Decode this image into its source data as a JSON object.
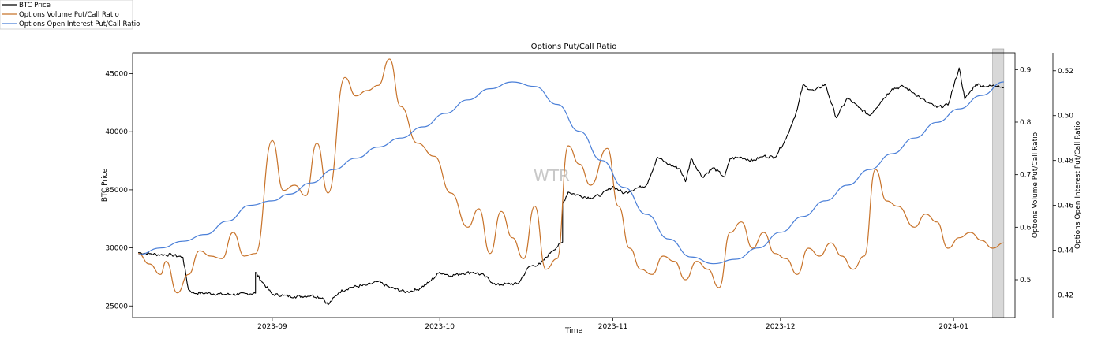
{
  "chart_data": {
    "type": "line",
    "title": "Options Put/Call Ratio",
    "xlabel": "Time",
    "watermark": "WTR",
    "x_range": [
      "2023-08-07",
      "2024-01-12"
    ],
    "x_ticks": [
      "2023-09",
      "2023-10",
      "2023-11",
      "2023-12",
      "2024-01"
    ],
    "highlight_range": [
      "2024-01-08",
      "2024-01-10"
    ],
    "colors": {
      "btc": "#000000",
      "volume": "#c8732a",
      "oi": "#4a7fd8",
      "highlight": "#d8d8d8"
    },
    "legend": {
      "placement": "top-left",
      "entries": [
        "BTC Price",
        "Options Volume Put/Call Ratio",
        "Options Open Interest Put/Call Ratio"
      ]
    },
    "axes": {
      "left": {
        "label": "BTC Price",
        "ylim": [
          24000,
          46800
        ],
        "ticks": [
          25000,
          30000,
          35000,
          40000,
          45000
        ]
      },
      "right1": {
        "label": "Options Volume Put/Call Ratio",
        "ylim": [
          0.428,
          0.932
        ],
        "ticks": [
          0.5,
          0.6,
          0.7,
          0.8,
          0.9
        ]
      },
      "right2": {
        "label": "Options Open Interest Put/Call Ratio",
        "ylim": [
          0.41,
          0.528
        ],
        "ticks": [
          0.42,
          0.44,
          0.46,
          0.48,
          0.5,
          0.52
        ]
      }
    },
    "series": [
      {
        "name": "BTC Price",
        "axis": "left",
        "key": "btc",
        "points": [
          [
            "2023-08-08",
            29600
          ],
          [
            "2023-08-10",
            29500
          ],
          [
            "2023-08-12",
            29400
          ],
          [
            "2023-08-14",
            29400
          ],
          [
            "2023-08-16",
            29200
          ],
          [
            "2023-08-17",
            26400
          ],
          [
            "2023-08-18",
            26100
          ],
          [
            "2023-08-20",
            26100
          ],
          [
            "2023-08-23",
            26000
          ],
          [
            "2023-08-26",
            26000
          ],
          [
            "2023-08-29",
            26100
          ],
          [
            "2023-08-29",
            27900
          ],
          [
            "2023-08-30",
            27200
          ],
          [
            "2023-09-01",
            26000
          ],
          [
            "2023-09-03",
            25900
          ],
          [
            "2023-09-05",
            25800
          ],
          [
            "2023-09-08",
            25900
          ],
          [
            "2023-09-10",
            25700
          ],
          [
            "2023-09-11",
            25100
          ],
          [
            "2023-09-13",
            26200
          ],
          [
            "2023-09-15",
            26600
          ],
          [
            "2023-09-18",
            26800
          ],
          [
            "2023-09-20",
            27100
          ],
          [
            "2023-09-22",
            26600
          ],
          [
            "2023-09-25",
            26200
          ],
          [
            "2023-09-27",
            26400
          ],
          [
            "2023-09-29",
            27000
          ],
          [
            "2023-10-01",
            27900
          ],
          [
            "2023-10-03",
            27600
          ],
          [
            "2023-10-05",
            27800
          ],
          [
            "2023-10-07",
            27900
          ],
          [
            "2023-10-09",
            27600
          ],
          [
            "2023-10-11",
            26800
          ],
          [
            "2023-10-13",
            26900
          ],
          [
            "2023-10-15",
            26900
          ],
          [
            "2023-10-17",
            28400
          ],
          [
            "2023-10-19",
            28600
          ],
          [
            "2023-10-21",
            29700
          ],
          [
            "2023-10-23",
            30500
          ],
          [
            "2023-10-23",
            33800
          ],
          [
            "2023-10-24",
            34800
          ],
          [
            "2023-10-26",
            34500
          ],
          [
            "2023-10-28",
            34300
          ],
          [
            "2023-10-30",
            34600
          ],
          [
            "2023-11-01",
            35300
          ],
          [
            "2023-11-03",
            34700
          ],
          [
            "2023-11-05",
            35100
          ],
          [
            "2023-11-07",
            35400
          ],
          [
            "2023-11-09",
            37800
          ],
          [
            "2023-11-11",
            37200
          ],
          [
            "2023-11-13",
            36800
          ],
          [
            "2023-11-14",
            35700
          ],
          [
            "2023-11-15",
            37700
          ],
          [
            "2023-11-17",
            36100
          ],
          [
            "2023-11-19",
            36900
          ],
          [
            "2023-11-21",
            36100
          ],
          [
            "2023-11-22",
            37700
          ],
          [
            "2023-11-24",
            37800
          ],
          [
            "2023-11-26",
            37500
          ],
          [
            "2023-11-28",
            37900
          ],
          [
            "2023-11-30",
            37800
          ],
          [
            "2023-12-02",
            39400
          ],
          [
            "2023-12-04",
            41900
          ],
          [
            "2023-12-05",
            44000
          ],
          [
            "2023-12-07",
            43500
          ],
          [
            "2023-12-09",
            44100
          ],
          [
            "2023-12-11",
            41200
          ],
          [
            "2023-12-13",
            42900
          ],
          [
            "2023-12-15",
            42100
          ],
          [
            "2023-12-17",
            41400
          ],
          [
            "2023-12-19",
            42600
          ],
          [
            "2023-12-21",
            43700
          ],
          [
            "2023-12-23",
            43900
          ],
          [
            "2023-12-25",
            43300
          ],
          [
            "2023-12-27",
            42600
          ],
          [
            "2023-12-29",
            42100
          ],
          [
            "2023-12-31",
            42300
          ],
          [
            "2024-01-02",
            45500
          ],
          [
            "2024-01-03",
            42800
          ],
          [
            "2024-01-05",
            44100
          ],
          [
            "2024-01-07",
            43900
          ],
          [
            "2024-01-09",
            44000
          ],
          [
            "2024-01-10",
            43800
          ]
        ]
      },
      {
        "name": "Options Volume Put/Call Ratio",
        "axis": "right1",
        "key": "volume",
        "points": [
          [
            "2023-08-08",
            0.55
          ],
          [
            "2023-08-10",
            0.53
          ],
          [
            "2023-08-12",
            0.51
          ],
          [
            "2023-08-13",
            0.535
          ],
          [
            "2023-08-15",
            0.475
          ],
          [
            "2023-08-17",
            0.51
          ],
          [
            "2023-08-19",
            0.555
          ],
          [
            "2023-08-21",
            0.545
          ],
          [
            "2023-08-23",
            0.54
          ],
          [
            "2023-08-25",
            0.59
          ],
          [
            "2023-08-27",
            0.545
          ],
          [
            "2023-08-29",
            0.55
          ],
          [
            "2023-09-01",
            0.765
          ],
          [
            "2023-09-03",
            0.67
          ],
          [
            "2023-09-05",
            0.68
          ],
          [
            "2023-09-07",
            0.66
          ],
          [
            "2023-09-09",
            0.76
          ],
          [
            "2023-09-11",
            0.665
          ],
          [
            "2023-09-14",
            0.885
          ],
          [
            "2023-09-16",
            0.85
          ],
          [
            "2023-09-18",
            0.86
          ],
          [
            "2023-09-20",
            0.87
          ],
          [
            "2023-09-22",
            0.92
          ],
          [
            "2023-09-24",
            0.83
          ],
          [
            "2023-09-27",
            0.76
          ],
          [
            "2023-09-30",
            0.735
          ],
          [
            "2023-10-03",
            0.665
          ],
          [
            "2023-10-06",
            0.6
          ],
          [
            "2023-10-08",
            0.635
          ],
          [
            "2023-10-10",
            0.55
          ],
          [
            "2023-10-12",
            0.63
          ],
          [
            "2023-10-14",
            0.58
          ],
          [
            "2023-10-16",
            0.54
          ],
          [
            "2023-10-18",
            0.64
          ],
          [
            "2023-10-20",
            0.52
          ],
          [
            "2023-10-22",
            0.54
          ],
          [
            "2023-10-24",
            0.755
          ],
          [
            "2023-10-26",
            0.72
          ],
          [
            "2023-10-28",
            0.68
          ],
          [
            "2023-10-31",
            0.75
          ],
          [
            "2023-11-02",
            0.64
          ],
          [
            "2023-11-04",
            0.56
          ],
          [
            "2023-11-06",
            0.52
          ],
          [
            "2023-11-08",
            0.51
          ],
          [
            "2023-11-10",
            0.545
          ],
          [
            "2023-11-12",
            0.535
          ],
          [
            "2023-11-14",
            0.5
          ],
          [
            "2023-11-16",
            0.535
          ],
          [
            "2023-11-18",
            0.52
          ],
          [
            "2023-11-20",
            0.485
          ],
          [
            "2023-11-22",
            0.59
          ],
          [
            "2023-11-24",
            0.61
          ],
          [
            "2023-11-26",
            0.56
          ],
          [
            "2023-11-28",
            0.59
          ],
          [
            "2023-11-30",
            0.55
          ],
          [
            "2023-12-02",
            0.54
          ],
          [
            "2023-12-04",
            0.51
          ],
          [
            "2023-12-06",
            0.56
          ],
          [
            "2023-12-08",
            0.545
          ],
          [
            "2023-12-10",
            0.57
          ],
          [
            "2023-12-12",
            0.545
          ],
          [
            "2023-12-14",
            0.52
          ],
          [
            "2023-12-16",
            0.545
          ],
          [
            "2023-12-18",
            0.71
          ],
          [
            "2023-12-20",
            0.65
          ],
          [
            "2023-12-22",
            0.64
          ],
          [
            "2023-12-25",
            0.6
          ],
          [
            "2023-12-27",
            0.625
          ],
          [
            "2023-12-29",
            0.61
          ],
          [
            "2023-12-31",
            0.56
          ],
          [
            "2024-01-02",
            0.58
          ],
          [
            "2024-01-04",
            0.59
          ],
          [
            "2024-01-06",
            0.575
          ],
          [
            "2024-01-08",
            0.56
          ],
          [
            "2024-01-10",
            0.57
          ]
        ]
      },
      {
        "name": "Options Open Interest Put/Call Ratio",
        "axis": "right2",
        "key": "oi",
        "points": [
          [
            "2023-08-08",
            0.438
          ],
          [
            "2023-08-12",
            0.441
          ],
          [
            "2023-08-16",
            0.444
          ],
          [
            "2023-08-20",
            0.447
          ],
          [
            "2023-08-24",
            0.453
          ],
          [
            "2023-08-28",
            0.46
          ],
          [
            "2023-09-01",
            0.462
          ],
          [
            "2023-09-04",
            0.465
          ],
          [
            "2023-09-08",
            0.47
          ],
          [
            "2023-09-12",
            0.476
          ],
          [
            "2023-09-16",
            0.481
          ],
          [
            "2023-09-20",
            0.486
          ],
          [
            "2023-09-24",
            0.49
          ],
          [
            "2023-09-28",
            0.495
          ],
          [
            "2023-10-02",
            0.501
          ],
          [
            "2023-10-06",
            0.507
          ],
          [
            "2023-10-10",
            0.512
          ],
          [
            "2023-10-14",
            0.515
          ],
          [
            "2023-10-18",
            0.513
          ],
          [
            "2023-10-22",
            0.505
          ],
          [
            "2023-10-26",
            0.493
          ],
          [
            "2023-10-30",
            0.48
          ],
          [
            "2023-11-03",
            0.468
          ],
          [
            "2023-11-07",
            0.456
          ],
          [
            "2023-11-11",
            0.445
          ],
          [
            "2023-11-15",
            0.437
          ],
          [
            "2023-11-19",
            0.434
          ],
          [
            "2023-11-23",
            0.436
          ],
          [
            "2023-11-27",
            0.441
          ],
          [
            "2023-12-01",
            0.448
          ],
          [
            "2023-12-05",
            0.455
          ],
          [
            "2023-12-09",
            0.462
          ],
          [
            "2023-12-13",
            0.469
          ],
          [
            "2023-12-17",
            0.476
          ],
          [
            "2023-12-21",
            0.483
          ],
          [
            "2023-12-25",
            0.49
          ],
          [
            "2023-12-29",
            0.497
          ],
          [
            "2024-01-02",
            0.503
          ],
          [
            "2024-01-06",
            0.509
          ],
          [
            "2024-01-10",
            0.515
          ]
        ]
      }
    ]
  }
}
